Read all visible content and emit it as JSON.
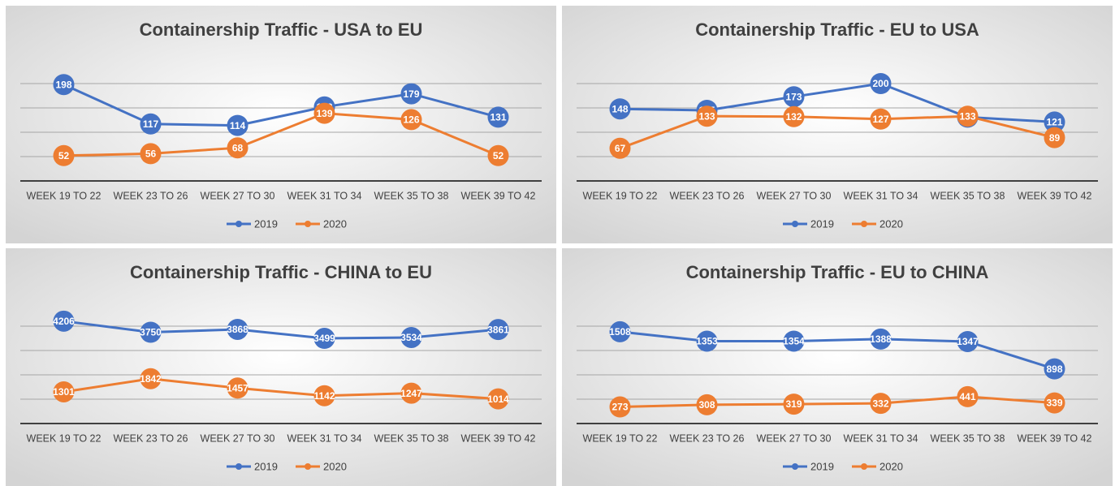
{
  "chart_data": [
    {
      "type": "line",
      "title": "Containership Traffic - USA to EU",
      "categories": [
        "WEEK 19 TO 22",
        "WEEK 23 TO 26",
        "WEEK 27 TO 30",
        "WEEK 31 TO 34",
        "WEEK 35 TO 38",
        "WEEK 39 TO 42"
      ],
      "series": [
        {
          "name": "2019",
          "color": "#4472c4",
          "values": [
            198,
            117,
            114,
            152,
            179,
            131
          ]
        },
        {
          "name": "2020",
          "color": "#ed7d31",
          "values": [
            52,
            56,
            68,
            139,
            126,
            52
          ]
        }
      ],
      "ylim": [
        0,
        250
      ],
      "grid": true
    },
    {
      "type": "line",
      "title": "Containership Traffic - EU to USA",
      "categories": [
        "WEEK 19 TO 22",
        "WEEK 23 TO 26",
        "WEEK 27 TO 30",
        "WEEK 31 TO 34",
        "WEEK 35 TO 38",
        "WEEK 39 TO 42"
      ],
      "series": [
        {
          "name": "2019",
          "color": "#4472c4",
          "values": [
            148,
            145,
            173,
            200,
            131,
            121
          ]
        },
        {
          "name": "2020",
          "color": "#ed7d31",
          "values": [
            67,
            133,
            132,
            127,
            133,
            89
          ]
        }
      ],
      "ylim": [
        0,
        250
      ],
      "grid": true
    },
    {
      "type": "line",
      "title": "Containership Traffic - CHINA to EU",
      "categories": [
        "WEEK 19 TO 22",
        "WEEK 23 TO 26",
        "WEEK 27 TO 30",
        "WEEK 31 TO 34",
        "WEEK 35 TO 38",
        "WEEK 39 TO 42"
      ],
      "series": [
        {
          "name": "2019",
          "color": "#4472c4",
          "values": [
            4206,
            3750,
            3868,
            3499,
            3534,
            3861
          ]
        },
        {
          "name": "2020",
          "color": "#ed7d31",
          "values": [
            1301,
            1842,
            1457,
            1142,
            1247,
            1014
          ]
        }
      ],
      "ylim": [
        0,
        5000
      ],
      "grid": true
    },
    {
      "type": "line",
      "title": "Containership Traffic - EU to CHINA",
      "categories": [
        "WEEK 19 TO 22",
        "WEEK 23 TO 26",
        "WEEK 27 TO 30",
        "WEEK 31 TO 34",
        "WEEK 35 TO 38",
        "WEEK 39 TO 42"
      ],
      "series": [
        {
          "name": "2019",
          "color": "#4472c4",
          "values": [
            1508,
            1353,
            1354,
            1388,
            1347,
            898
          ]
        },
        {
          "name": "2020",
          "color": "#ed7d31",
          "values": [
            273,
            308,
            319,
            332,
            441,
            339
          ]
        }
      ],
      "ylim": [
        0,
        2000
      ],
      "grid": true
    }
  ]
}
